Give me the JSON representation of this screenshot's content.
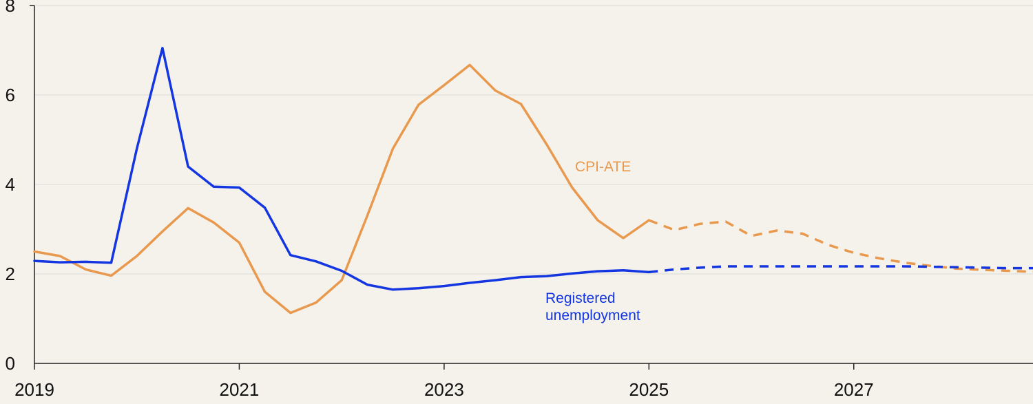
{
  "chart_data": {
    "type": "line",
    "title": "",
    "xlabel": "",
    "ylabel": "",
    "xlim": [
      2019,
      2028.75
    ],
    "ylim": [
      0,
      8
    ],
    "x_ticks": [
      2019,
      2021,
      2023,
      2025,
      2027
    ],
    "x_tick_labels": [
      "2019",
      "2021",
      "2023",
      "2025",
      "2027"
    ],
    "y_ticks": [
      0,
      2,
      4,
      6,
      8
    ],
    "y_tick_labels": [
      "0",
      "2",
      "4",
      "6",
      "8"
    ],
    "grid": "horizontal",
    "forecast_start": 2025.0,
    "series": [
      {
        "name": "CPI-ATE",
        "label_lines": [
          "CPI-ATE"
        ],
        "color": "#e8994e",
        "points": [
          [
            2019.0,
            2.5
          ],
          [
            2019.25,
            2.4
          ],
          [
            2019.5,
            2.1
          ],
          [
            2019.75,
            1.96
          ],
          [
            2020.0,
            2.4
          ],
          [
            2020.25,
            2.95
          ],
          [
            2020.5,
            3.47
          ],
          [
            2020.75,
            3.15
          ],
          [
            2021.0,
            2.7
          ],
          [
            2021.25,
            1.6
          ],
          [
            2021.5,
            1.13
          ],
          [
            2021.75,
            1.36
          ],
          [
            2022.0,
            1.86
          ],
          [
            2022.25,
            3.3
          ],
          [
            2022.5,
            4.8
          ],
          [
            2022.75,
            5.78
          ],
          [
            2023.0,
            6.22
          ],
          [
            2023.25,
            6.67
          ],
          [
            2023.5,
            6.1
          ],
          [
            2023.75,
            5.8
          ],
          [
            2024.0,
            4.9
          ],
          [
            2024.25,
            3.93
          ],
          [
            2024.5,
            3.2
          ],
          [
            2024.75,
            2.8
          ],
          [
            2025.0,
            3.2
          ],
          [
            2025.25,
            2.98
          ],
          [
            2025.5,
            3.12
          ],
          [
            2025.75,
            3.17
          ],
          [
            2026.0,
            2.85
          ],
          [
            2026.25,
            2.97
          ],
          [
            2026.5,
            2.9
          ],
          [
            2026.75,
            2.65
          ],
          [
            2027.0,
            2.47
          ],
          [
            2027.25,
            2.35
          ],
          [
            2027.5,
            2.25
          ],
          [
            2027.75,
            2.18
          ],
          [
            2028.0,
            2.12
          ],
          [
            2028.25,
            2.09
          ],
          [
            2028.5,
            2.07
          ],
          [
            2028.75,
            2.05
          ]
        ]
      },
      {
        "name": "Registered unemployment",
        "label_lines": [
          "Registered",
          "unemployment"
        ],
        "color": "#1436e0",
        "points": [
          [
            2019.0,
            2.29
          ],
          [
            2019.25,
            2.26
          ],
          [
            2019.5,
            2.27
          ],
          [
            2019.75,
            2.25
          ],
          [
            2020.0,
            4.8
          ],
          [
            2020.25,
            7.05
          ],
          [
            2020.5,
            4.4
          ],
          [
            2020.75,
            3.95
          ],
          [
            2021.0,
            3.93
          ],
          [
            2021.25,
            3.48
          ],
          [
            2021.5,
            2.42
          ],
          [
            2021.75,
            2.28
          ],
          [
            2022.0,
            2.07
          ],
          [
            2022.25,
            1.76
          ],
          [
            2022.5,
            1.65
          ],
          [
            2022.75,
            1.68
          ],
          [
            2023.0,
            1.73
          ],
          [
            2023.25,
            1.8
          ],
          [
            2023.5,
            1.86
          ],
          [
            2023.75,
            1.93
          ],
          [
            2024.0,
            1.95
          ],
          [
            2024.25,
            2.01
          ],
          [
            2024.5,
            2.06
          ],
          [
            2024.75,
            2.08
          ],
          [
            2025.0,
            2.04
          ],
          [
            2025.25,
            2.1
          ],
          [
            2025.5,
            2.14
          ],
          [
            2025.75,
            2.17
          ],
          [
            2026.0,
            2.17
          ],
          [
            2026.25,
            2.17
          ],
          [
            2026.5,
            2.17
          ],
          [
            2026.75,
            2.17
          ],
          [
            2027.0,
            2.17
          ],
          [
            2027.25,
            2.17
          ],
          [
            2027.5,
            2.17
          ],
          [
            2027.75,
            2.16
          ],
          [
            2028.0,
            2.15
          ],
          [
            2028.25,
            2.14
          ],
          [
            2028.5,
            2.13
          ],
          [
            2028.75,
            2.13
          ]
        ]
      }
    ]
  }
}
